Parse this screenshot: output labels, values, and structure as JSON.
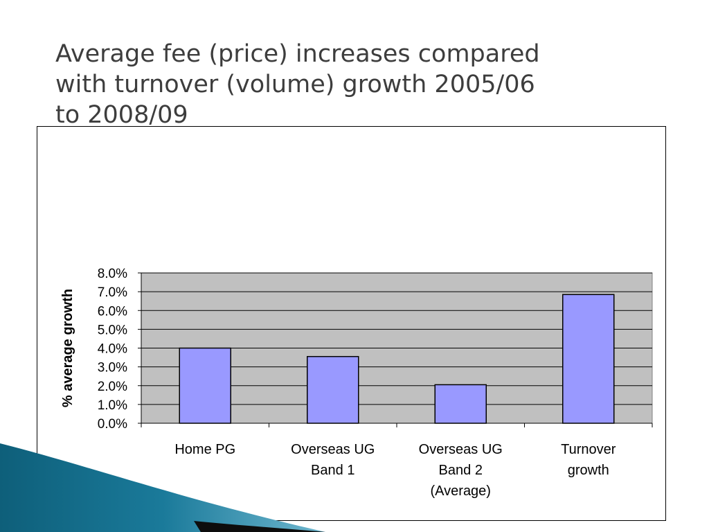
{
  "slide": {
    "title_lines": [
      "Average fee (price) increases compared",
      "with turnover (volume) growth 2005/06",
      "to 2008/09"
    ]
  },
  "colors": {
    "bar_fill": "#9999FF",
    "plot_background": "#C0C0C0",
    "gridline": "#000000",
    "title_text": "#3D3D3D",
    "swoosh_teal": "#1A7A9A",
    "swoosh_dark": "#0D0D0D"
  },
  "chart_data": {
    "type": "bar",
    "title": "",
    "xlabel": "",
    "ylabel": "% average growth",
    "categories": [
      [
        "Home PG"
      ],
      [
        "Overseas UG",
        "Band 1"
      ],
      [
        "Overseas UG",
        "Band 2",
        "(Average)"
      ],
      [
        "Turnover",
        "growth"
      ]
    ],
    "values": [
      4.0,
      3.55,
      2.05,
      6.85
    ],
    "ylim": [
      0,
      8
    ],
    "y_ticks": [
      "0.0%",
      "1.0%",
      "2.0%",
      "3.0%",
      "4.0%",
      "5.0%",
      "6.0%",
      "7.0%",
      "8.0%"
    ],
    "grid": true,
    "legend": "none"
  }
}
